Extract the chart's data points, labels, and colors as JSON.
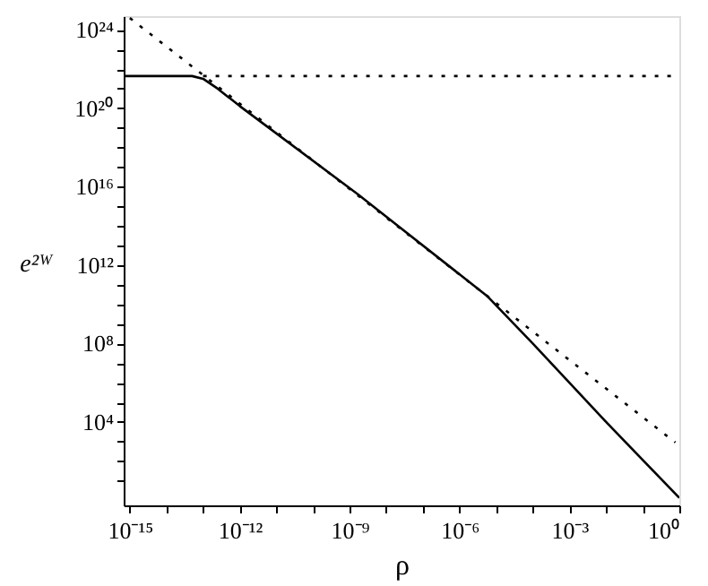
{
  "chart_data": {
    "type": "line",
    "xlabel": "ρ",
    "ylabel": "e²ᵂ",
    "log": "xy",
    "grid": false,
    "xlim": [
      6.8e-16,
      1
    ],
    "ylim": [
      0.56,
      5e+24
    ],
    "xticks": [
      {
        "value": 1e-15,
        "label": "10⁻¹⁵"
      },
      {
        "value": 1e-14,
        "label": null
      },
      {
        "value": 1e-13,
        "label": null
      },
      {
        "value": 1e-12,
        "label": "10⁻¹²"
      },
      {
        "value": 1e-11,
        "label": null
      },
      {
        "value": 1e-10,
        "label": null
      },
      {
        "value": 1e-09,
        "label": "10⁻⁹"
      },
      {
        "value": 1e-08,
        "label": null
      },
      {
        "value": 1e-07,
        "label": null
      },
      {
        "value": 1e-06,
        "label": "10⁻⁶"
      },
      {
        "value": 1e-05,
        "label": null
      },
      {
        "value": 0.0001,
        "label": null
      },
      {
        "value": 0.001,
        "label": "10⁻³"
      },
      {
        "value": 0.01,
        "label": null
      },
      {
        "value": 0.1,
        "label": null
      },
      {
        "value": 1,
        "label": "10⁰"
      }
    ],
    "yticks": [
      {
        "value": 10.0,
        "label": null
      },
      {
        "value": 100.0,
        "label": null
      },
      {
        "value": 1000.0,
        "label": null
      },
      {
        "value": 10000.0,
        "label": "10⁴"
      },
      {
        "value": 100000.0,
        "label": null
      },
      {
        "value": 1000000.0,
        "label": null
      },
      {
        "value": 10000000.0,
        "label": null
      },
      {
        "value": 100000000.0,
        "label": "10⁸"
      },
      {
        "value": 1000000000.0,
        "label": null
      },
      {
        "value": 10000000000.0,
        "label": null
      },
      {
        "value": 100000000000.0,
        "label": null
      },
      {
        "value": 1000000000000.0,
        "label": "10¹²"
      },
      {
        "value": 10000000000000.0,
        "label": null
      },
      {
        "value": 100000000000000.0,
        "label": null
      },
      {
        "value": 1000000000000000.0,
        "label": null
      },
      {
        "value": 1e+16,
        "label": "10¹⁶"
      },
      {
        "value": 1e+17,
        "label": null
      },
      {
        "value": 1e+18,
        "label": null
      },
      {
        "value": 1e+19,
        "label": null
      },
      {
        "value": 1e+20,
        "label": "10²⁰"
      },
      {
        "value": 1e+21,
        "label": null
      },
      {
        "value": 1e+22,
        "label": null
      },
      {
        "value": 1e+23,
        "label": null
      },
      {
        "value": 1e+24,
        "label": "10²⁴"
      }
    ],
    "series": [
      {
        "color": "#000000",
        "line_style": "solid",
        "x": [
          6.8e-16,
          5e-14,
          1e-13,
          2.5e-13,
          1e-12,
          1.7e-09,
          5.6e-06,
          0.0001,
          0.01,
          1
        ],
        "values": [
          4.4e+21,
          4.4e+21,
          3.2e+21,
          1e+21,
          1.3e+20,
          4000000000000000.0,
          27000000000.0,
          100000000.0,
          10000.0,
          1.35
        ]
      },
      {
        "color": "#000000",
        "line_style": "dotted",
        "x": [
          1e-13,
          1
        ],
        "values": [
          4.4e+21,
          4.4e+21
        ]
      },
      {
        "color": "#000000",
        "line_style": "dotted",
        "x": [
          1e-15,
          0.78
        ],
        "values": [
          4e+24,
          900.0
        ]
      }
    ]
  }
}
